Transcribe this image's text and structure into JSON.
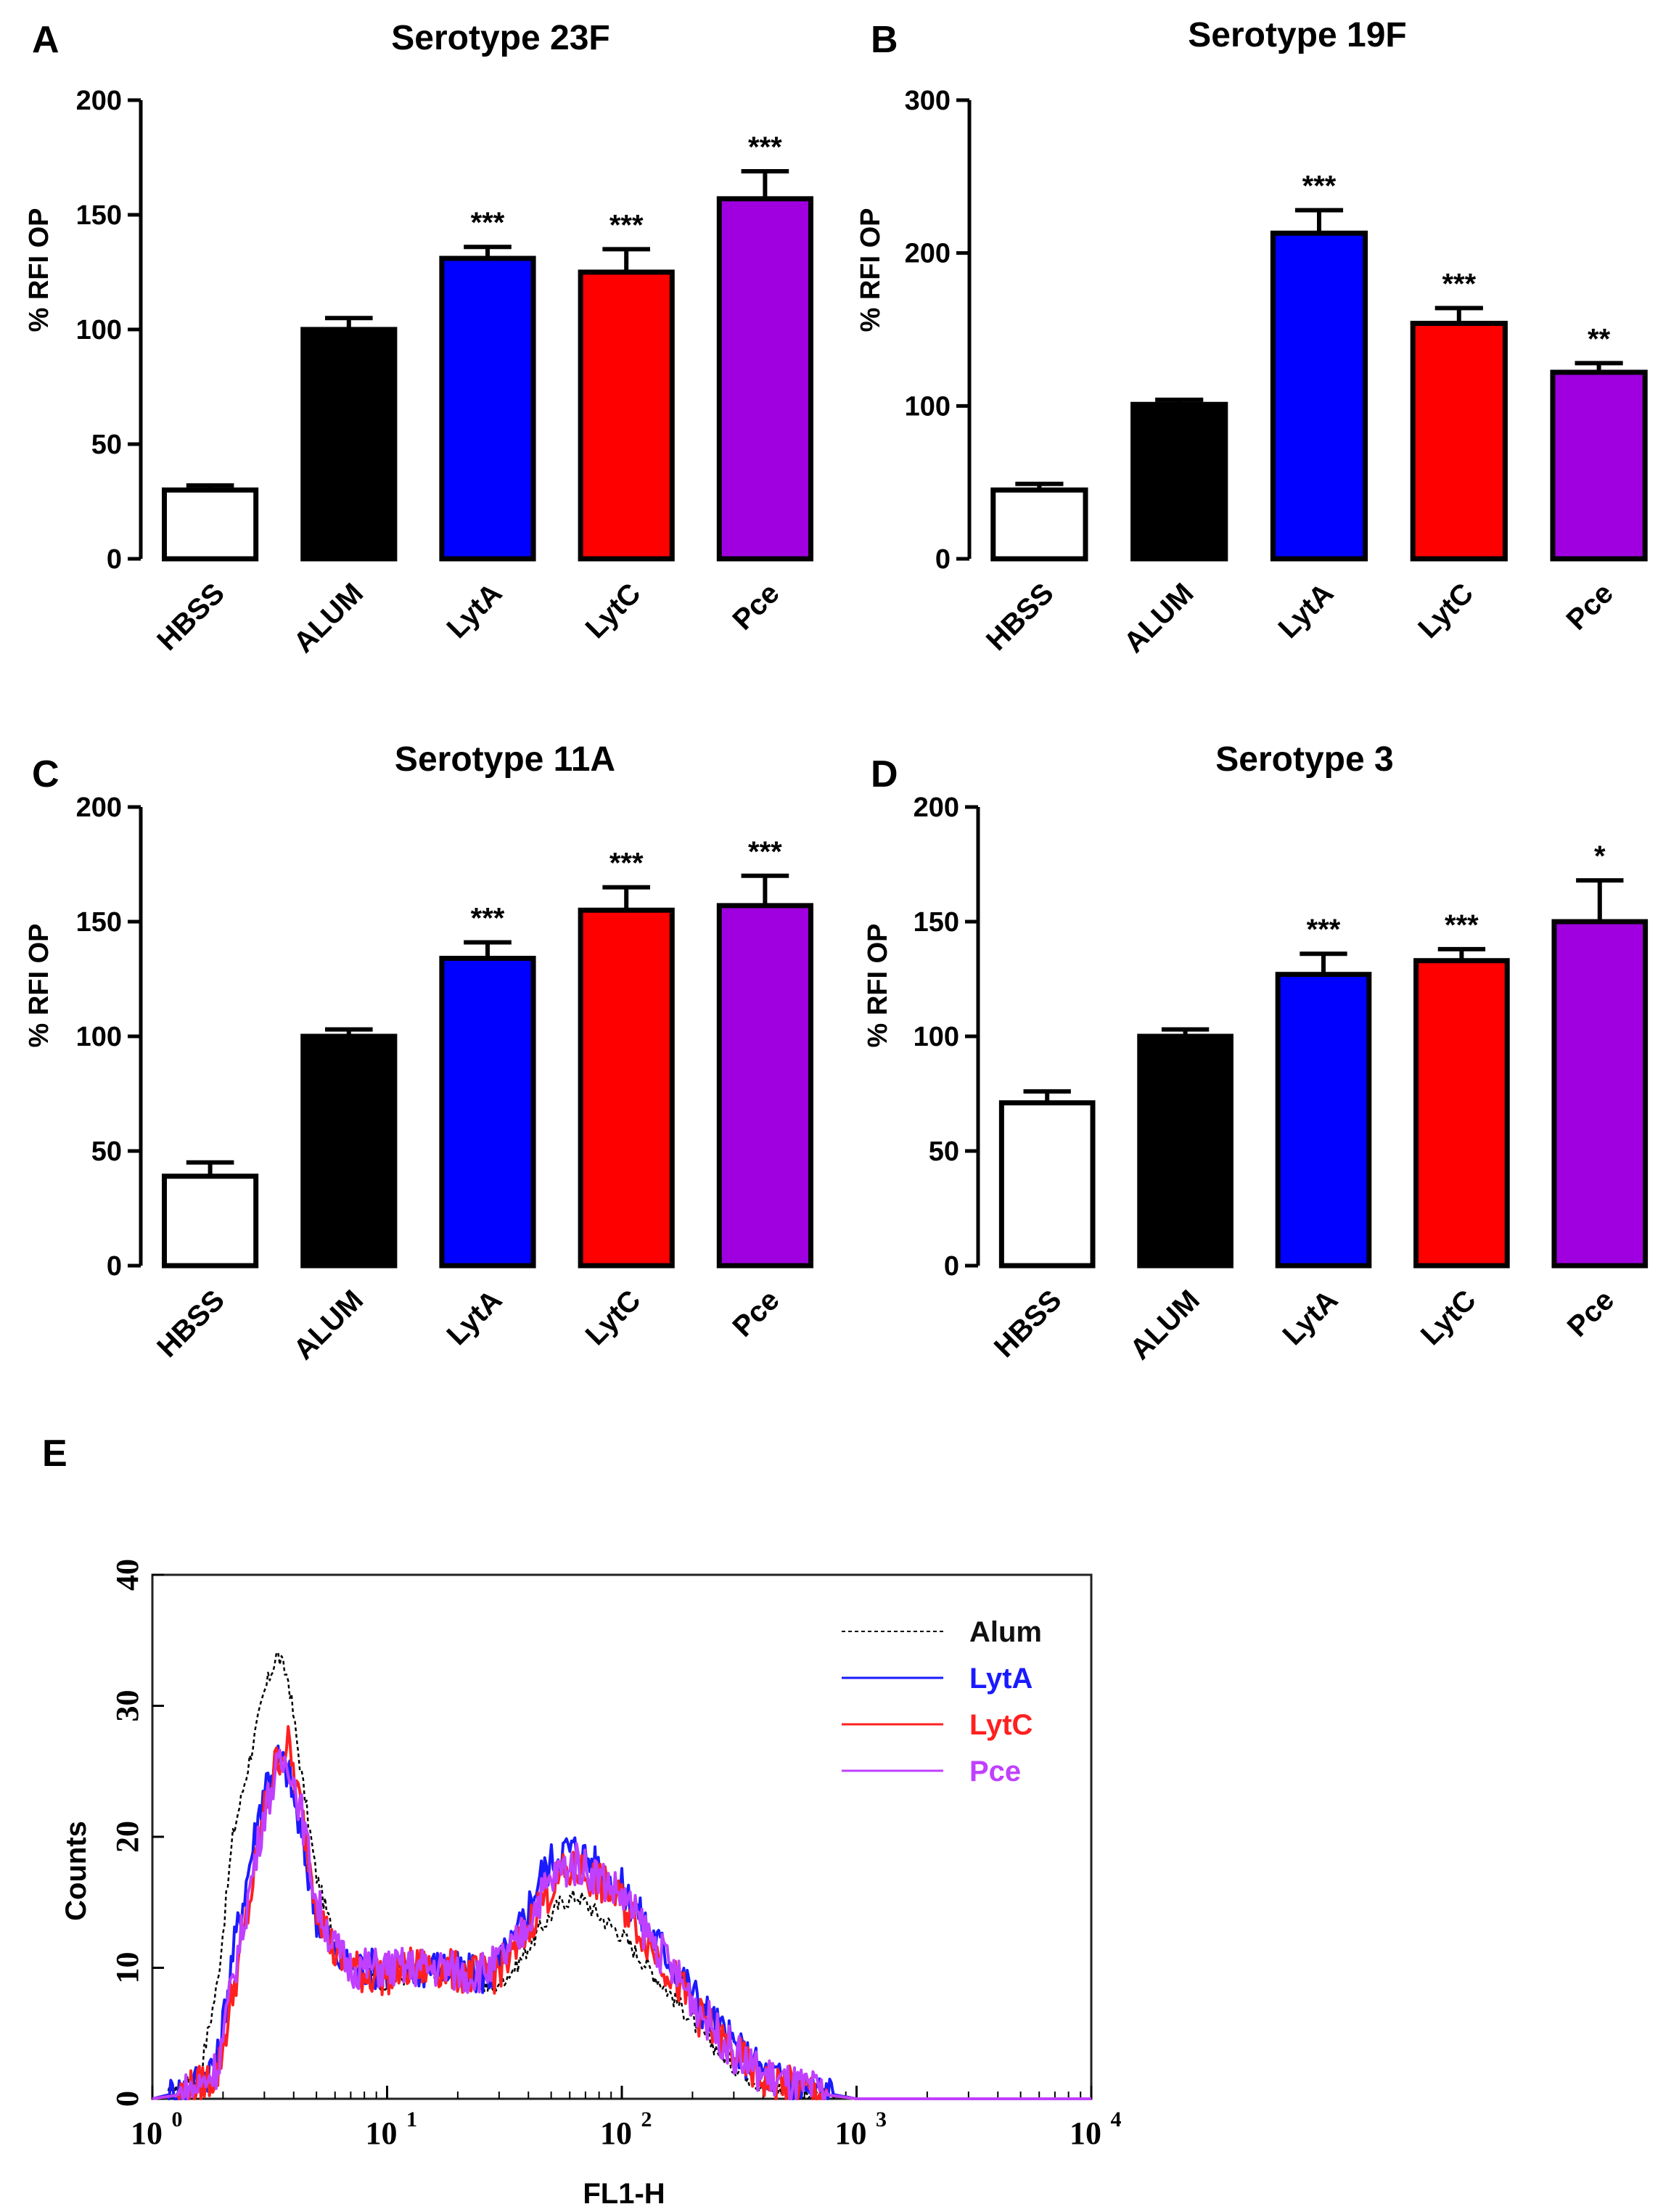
{
  "chart_data": [
    {
      "type": "bar",
      "panel": "A",
      "title": "Serotype 23F",
      "ylabel": "% RFI OP",
      "xlabel": "",
      "ylim": [
        0,
        200
      ],
      "yticks": [
        0,
        50,
        100,
        150,
        200
      ],
      "categories": [
        "HBSS",
        "ALUM",
        "LytA",
        "LytC",
        "Pce"
      ],
      "values": [
        30,
        100,
        131,
        125,
        157
      ],
      "errors": [
        2,
        5,
        5,
        10,
        12
      ],
      "significance": [
        "",
        "",
        "***",
        "***",
        "***"
      ],
      "colors": [
        "#ffffff",
        "#000000",
        "#0000ff",
        "#ff0000",
        "#a000e0"
      ]
    },
    {
      "type": "bar",
      "panel": "B",
      "title": "Serotype 19F",
      "ylabel": "% RFI OP",
      "xlabel": "",
      "ylim": [
        0,
        300
      ],
      "yticks": [
        0,
        100,
        200,
        300
      ],
      "categories": [
        "HBSS",
        "ALUM",
        "LytA",
        "LytC",
        "Pce"
      ],
      "values": [
        45,
        101,
        213,
        154,
        122
      ],
      "errors": [
        4,
        3,
        15,
        10,
        6
      ],
      "significance": [
        "",
        "",
        "***",
        "***",
        "**"
      ],
      "colors": [
        "#ffffff",
        "#000000",
        "#0000ff",
        "#ff0000",
        "#a000e0"
      ]
    },
    {
      "type": "bar",
      "panel": "C",
      "title": "Serotype 11A",
      "ylabel": "% RFI OP",
      "xlabel": "",
      "ylim": [
        0,
        200
      ],
      "yticks": [
        0,
        50,
        100,
        150,
        200
      ],
      "categories": [
        "HBSS",
        "ALUM",
        "LytA",
        "LytC",
        "Pce"
      ],
      "values": [
        39,
        100,
        134,
        155,
        157
      ],
      "errors": [
        6,
        3,
        7,
        10,
        13
      ],
      "significance": [
        "",
        "",
        "***",
        "***",
        "***"
      ],
      "colors": [
        "#ffffff",
        "#000000",
        "#0000ff",
        "#ff0000",
        "#a000e0"
      ]
    },
    {
      "type": "bar",
      "panel": "D",
      "title": "Serotype 3",
      "ylabel": "% RFI OP",
      "xlabel": "",
      "ylim": [
        0,
        200
      ],
      "yticks": [
        0,
        50,
        100,
        150,
        200
      ],
      "categories": [
        "HBSS",
        "ALUM",
        "LytA",
        "LytC",
        "Pce"
      ],
      "values": [
        71,
        100,
        127,
        133,
        150
      ],
      "errors": [
        5,
        3,
        9,
        5,
        18
      ],
      "significance": [
        "",
        "",
        "***",
        "***",
        "*"
      ],
      "colors": [
        "#ffffff",
        "#000000",
        "#0000ff",
        "#ff0000",
        "#a000e0"
      ]
    },
    {
      "type": "line",
      "panel": "E",
      "title": "",
      "xlabel": "FL1-H",
      "ylabel": "Counts",
      "xscale": "log",
      "xlim": [
        1,
        10000
      ],
      "ylim": [
        0,
        40
      ],
      "yticks": [
        0,
        10,
        20,
        30,
        40
      ],
      "xticks": [
        {
          "base": "10",
          "exp": "0"
        },
        {
          "base": "10",
          "exp": "1"
        },
        {
          "base": "10",
          "exp": "2"
        },
        {
          "base": "10",
          "exp": "3"
        },
        {
          "base": "10",
          "exp": "4"
        }
      ],
      "legend_position": "top-right",
      "series": [
        {
          "name": "Alum",
          "color": "#000000",
          "dash": "dotted",
          "x": [
            1,
            1.3,
            1.6,
            1.9,
            2.2,
            2.6,
            3.0,
            3.4,
            3.8,
            4.3,
            5,
            6,
            7,
            8,
            10,
            13,
            17,
            22,
            28,
            35,
            45,
            55,
            65,
            80,
            100,
            130,
            170,
            220,
            300,
            400,
            550,
            750,
            1000,
            10000
          ],
          "y": [
            0,
            0.5,
            2,
            9,
            20,
            26,
            31,
            34,
            32,
            25,
            17,
            12,
            10,
            9,
            9,
            9.5,
            9.5,
            9,
            8.5,
            10,
            13,
            15,
            15.5,
            14,
            12.5,
            10,
            7.5,
            5,
            2.5,
            1,
            0.5,
            0.2,
            0,
            0
          ]
        },
        {
          "name": "LytA",
          "color": "#1a1aff",
          "dash": "solid",
          "x": [
            1,
            1.3,
            1.6,
            1.9,
            2.2,
            2.6,
            3.0,
            3.4,
            3.8,
            4.3,
            5,
            6,
            7,
            8,
            10,
            13,
            17,
            22,
            28,
            35,
            45,
            55,
            65,
            80,
            100,
            130,
            170,
            220,
            300,
            400,
            550,
            750,
            1000,
            10000
          ],
          "y": [
            0,
            0.5,
            1.5,
            3,
            11,
            18,
            24,
            26,
            25,
            20,
            14,
            11,
            10,
            10,
            10,
            10,
            10,
            9.5,
            9.5,
            12,
            17,
            19,
            19,
            17.5,
            16,
            13,
            10,
            7,
            4,
            2,
            1,
            0.4,
            0,
            0
          ]
        },
        {
          "name": "LytC",
          "color": "#ff2020",
          "dash": "solid",
          "x": [
            1,
            1.3,
            1.6,
            1.9,
            2.2,
            2.6,
            3.0,
            3.4,
            3.8,
            4.3,
            5,
            6,
            7,
            8,
            10,
            13,
            17,
            22,
            28,
            35,
            45,
            55,
            65,
            80,
            100,
            130,
            170,
            220,
            300,
            400,
            550,
            750,
            1000,
            10000
          ],
          "y": [
            0,
            0.3,
            1,
            2,
            8,
            15,
            22,
            26,
            27,
            22,
            15,
            11,
            10,
            9.5,
            9.5,
            10,
            10,
            9.5,
            9.5,
            11,
            15,
            17,
            17.5,
            16.5,
            15,
            12,
            9,
            6,
            3.5,
            1.5,
            0.8,
            0.3,
            0,
            0
          ]
        },
        {
          "name": "Pce",
          "color": "#c040ff",
          "dash": "solid",
          "x": [
            1,
            1.3,
            1.6,
            1.9,
            2.2,
            2.6,
            3.0,
            3.4,
            3.8,
            4.3,
            5,
            6,
            7,
            8,
            10,
            13,
            17,
            22,
            28,
            35,
            45,
            55,
            65,
            80,
            100,
            130,
            170,
            220,
            300,
            400,
            550,
            750,
            1000,
            10000
          ],
          "y": [
            0,
            0.3,
            1,
            2.5,
            9,
            16,
            22,
            25,
            26,
            22,
            15,
            11.5,
            10,
            10,
            10,
            10,
            10,
            9.5,
            10,
            11.5,
            15.5,
            17.5,
            18,
            17,
            15.5,
            12.5,
            9.5,
            6.5,
            3.5,
            1.8,
            0.9,
            0.3,
            0,
            0
          ]
        }
      ]
    }
  ]
}
